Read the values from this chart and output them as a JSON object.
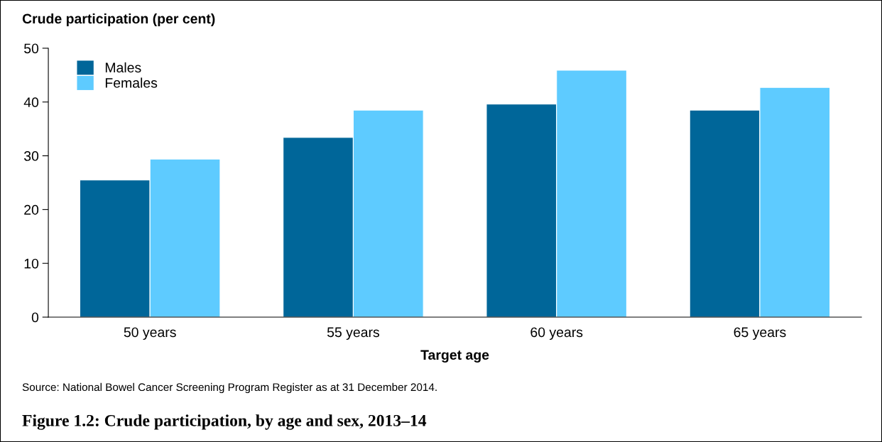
{
  "chart_data": {
    "type": "bar",
    "title": "Figure 1.2: Crude participation, by age and sex, 2013–14",
    "ylabel": "Crude participation (per cent)",
    "xlabel": "Target age",
    "annotations": [
      "Source: National Bowel Cancer Screening Program Register as at 31 December 2014."
    ],
    "categories": [
      "50 years",
      "55 years",
      "60 years",
      "65 years"
    ],
    "series": [
      {
        "name": "Males",
        "color": "#006699",
        "values": [
          25.5,
          33.4,
          39.6,
          38.5
        ]
      },
      {
        "name": "Females",
        "color": "#5ecbff",
        "values": [
          29.4,
          38.5,
          45.9,
          42.7
        ]
      }
    ],
    "ylim": [
      0,
      50
    ],
    "yticks": [
      0,
      10,
      20,
      30,
      40,
      50
    ],
    "grid": false,
    "legend": "top left"
  }
}
